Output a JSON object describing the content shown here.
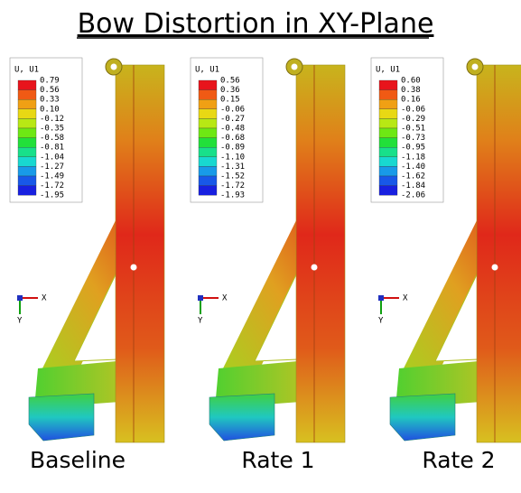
{
  "title": "Bow Distortion in XY-Plane",
  "panels": [
    {
      "legend_title": "U, U1",
      "legend_values": [
        "0.79",
        "0.56",
        "0.33",
        "0.10",
        "-0.12",
        "-0.35",
        "-0.58",
        "-0.81",
        "-1.04",
        "-1.27",
        "-1.49",
        "-1.72",
        "-1.95"
      ],
      "axis_x": "X",
      "axis_y": "Y",
      "caption": "Baseline"
    },
    {
      "legend_title": "U, U1",
      "legend_values": [
        "0.56",
        "0.36",
        "0.15",
        "-0.06",
        "-0.27",
        "-0.48",
        "-0.68",
        "-0.89",
        "-1.10",
        "-1.31",
        "-1.52",
        "-1.72",
        "-1.93"
      ],
      "axis_x": "X",
      "axis_y": "Y",
      "caption": "Rate 1"
    },
    {
      "legend_title": "U, U1",
      "legend_values": [
        "0.60",
        "0.38",
        "0.16",
        "-0.06",
        "-0.29",
        "-0.51",
        "-0.73",
        "-0.95",
        "-1.18",
        "-1.40",
        "-1.62",
        "-1.84",
        "-2.06"
      ],
      "axis_x": "X",
      "axis_y": "Y",
      "caption": "Rate 2"
    }
  ]
}
